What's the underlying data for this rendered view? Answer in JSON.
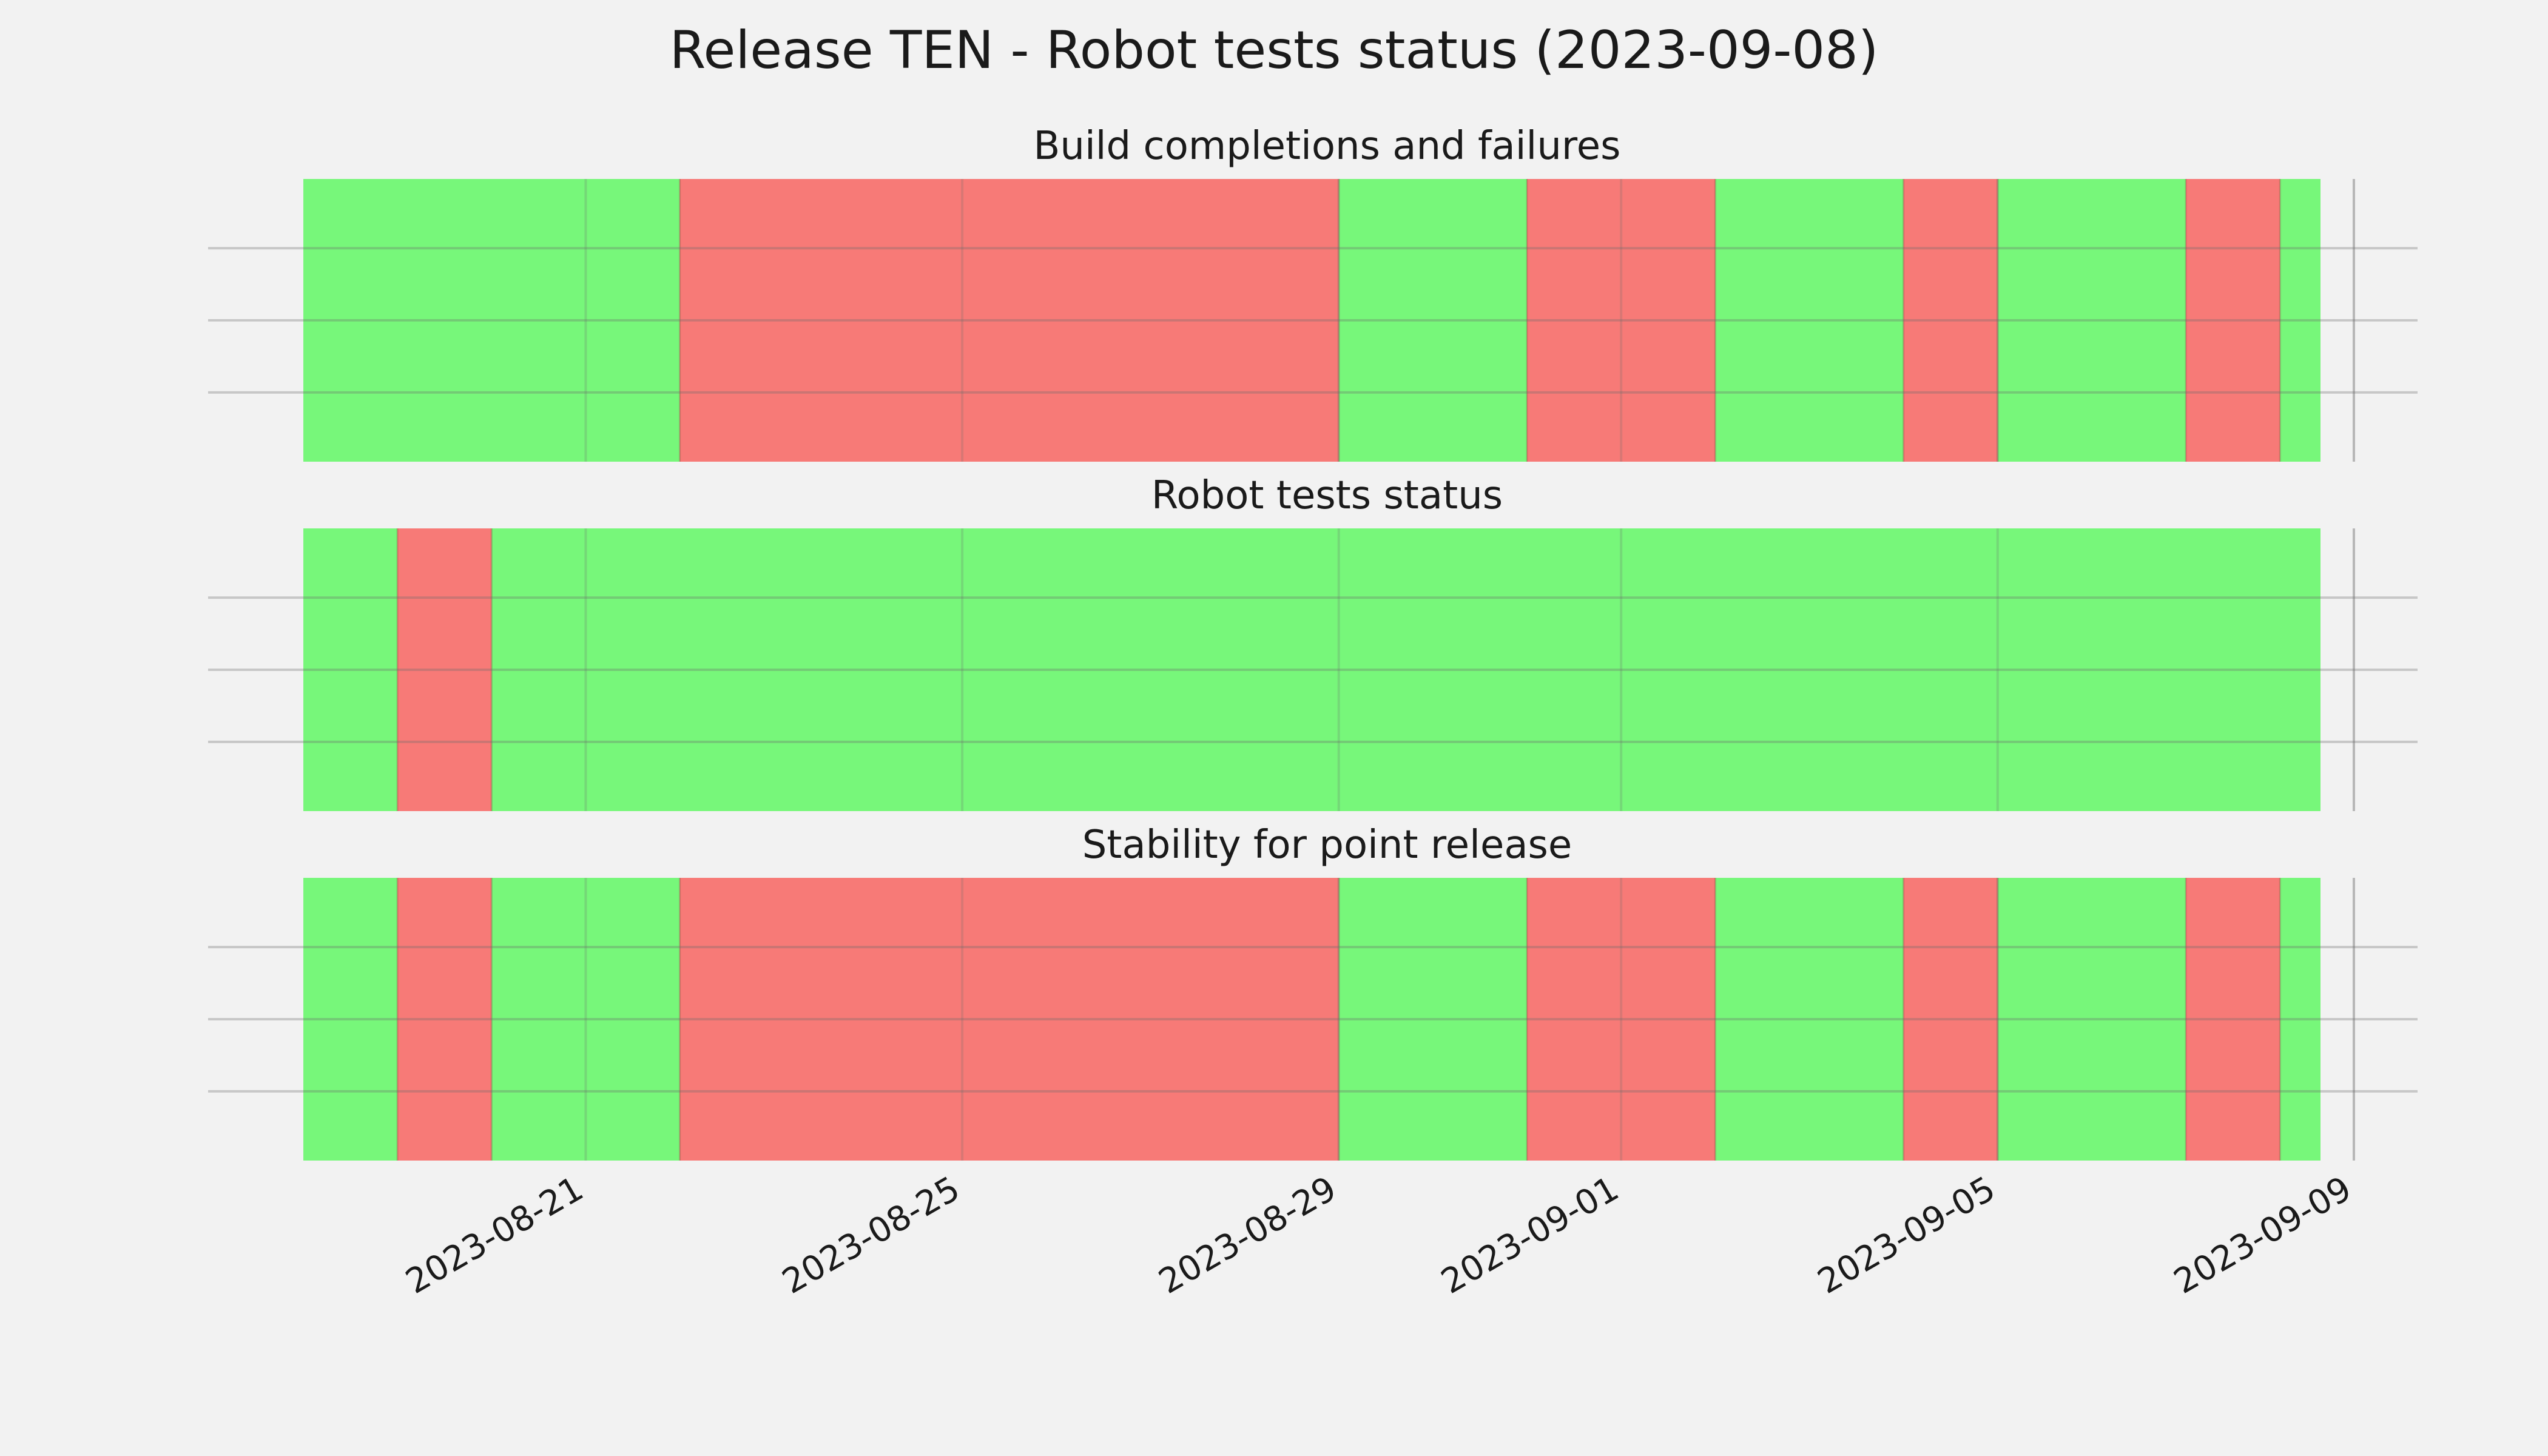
{
  "chart_data": {
    "type": "timeline",
    "title": "Release TEN - Robot tests status (2023-09-08)",
    "x_range": [
      "2023-08-18",
      "2023-09-08"
    ],
    "xticks": [
      "2023-08-21",
      "2023-08-25",
      "2023-08-29",
      "2023-09-01",
      "2023-09-05",
      "2023-09-09"
    ],
    "grid": true,
    "colors": {
      "pass": "#77f77a",
      "fail": "#f77a77"
    },
    "panels": [
      {
        "title": "Build completions and failures",
        "segments": [
          {
            "start": "2023-08-18",
            "end": "2023-08-22",
            "status": "pass"
          },
          {
            "start": "2023-08-22",
            "end": "2023-08-29",
            "status": "fail"
          },
          {
            "start": "2023-08-29",
            "end": "2023-08-31",
            "status": "pass"
          },
          {
            "start": "2023-08-31",
            "end": "2023-09-02",
            "status": "fail"
          },
          {
            "start": "2023-09-02",
            "end": "2023-09-04",
            "status": "pass"
          },
          {
            "start": "2023-09-04",
            "end": "2023-09-05",
            "status": "fail"
          },
          {
            "start": "2023-09-05",
            "end": "2023-09-07",
            "status": "pass"
          },
          {
            "start": "2023-09-07",
            "end": "2023-09-08",
            "status": "fail"
          },
          {
            "start": "2023-09-08",
            "end": "2023-09-08",
            "status": "pass"
          }
        ]
      },
      {
        "title": "Robot tests status",
        "segments": [
          {
            "start": "2023-08-18",
            "end": "2023-08-19",
            "status": "pass"
          },
          {
            "start": "2023-08-19",
            "end": "2023-08-20",
            "status": "fail"
          },
          {
            "start": "2023-08-20",
            "end": "2023-09-08",
            "status": "pass"
          }
        ]
      },
      {
        "title": "Stability for point release",
        "segments": [
          {
            "start": "2023-08-18",
            "end": "2023-08-19",
            "status": "pass"
          },
          {
            "start": "2023-08-19",
            "end": "2023-08-20",
            "status": "fail"
          },
          {
            "start": "2023-08-20",
            "end": "2023-08-22",
            "status": "pass"
          },
          {
            "start": "2023-08-22",
            "end": "2023-08-29",
            "status": "fail"
          },
          {
            "start": "2023-08-29",
            "end": "2023-08-31",
            "status": "pass"
          },
          {
            "start": "2023-08-31",
            "end": "2023-09-02",
            "status": "fail"
          },
          {
            "start": "2023-09-02",
            "end": "2023-09-04",
            "status": "pass"
          },
          {
            "start": "2023-09-04",
            "end": "2023-09-05",
            "status": "fail"
          },
          {
            "start": "2023-09-05",
            "end": "2023-09-07",
            "status": "pass"
          },
          {
            "start": "2023-09-07",
            "end": "2023-09-08",
            "status": "fail"
          },
          {
            "start": "2023-09-08",
            "end": "2023-09-08",
            "status": "pass"
          }
        ]
      }
    ]
  }
}
